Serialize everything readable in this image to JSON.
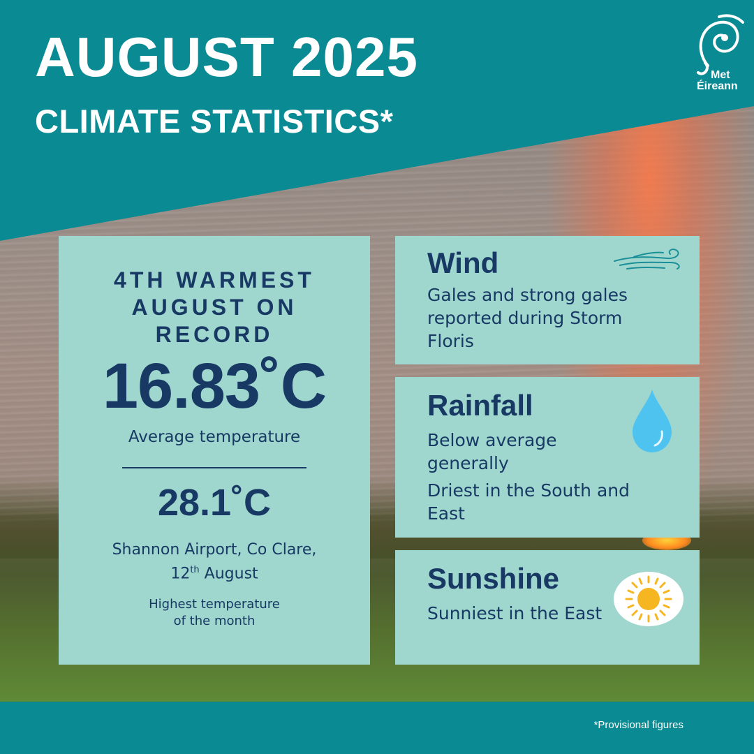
{
  "header": {
    "title": "AUGUST 2025",
    "subtitle": "CLIMATE STATISTICS*"
  },
  "logo": {
    "line1": "Met",
    "line2": "Éireann",
    "icon": "met-eireann-swirl-icon"
  },
  "temperature_card": {
    "headline": "4TH WARMEST AUGUST ON RECORD",
    "average_value": "16.83˚C",
    "average_label": "Average temperature",
    "max_value": "28.1˚C",
    "max_location": "Shannon Airport, Co Clare,",
    "max_day": "12",
    "max_day_suffix": "th",
    "max_month": " August",
    "max_label_line1": "Highest temperature",
    "max_label_line2": "of the month"
  },
  "wind_card": {
    "title": "Wind",
    "text": "Gales and strong gales reported during Storm Floris",
    "icon": "wind-icon"
  },
  "rainfall_card": {
    "title": "Rainfall",
    "text1": "Below average generally",
    "text2": "Driest in the South and East",
    "icon": "raindrop-icon"
  },
  "sunshine_card": {
    "title": "Sunshine",
    "text": "Sunniest in the East",
    "icon": "sun-icon"
  },
  "footer": {
    "note": "*Provisional figures"
  },
  "colors": {
    "teal": "#0a8a93",
    "card": "#9fd7cf",
    "navy": "#173963",
    "drop": "#4fc3f0",
    "sun": "#f5b621"
  }
}
